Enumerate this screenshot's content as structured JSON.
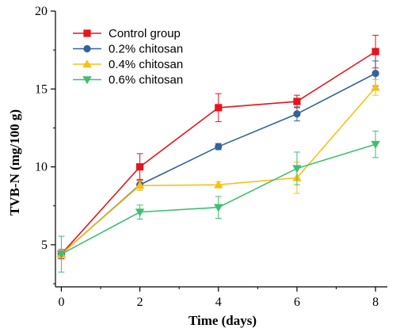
{
  "chart_data": {
    "type": "line",
    "title": "",
    "xlabel": "Time (days)",
    "ylabel": "TVB-N (mg/100 g)",
    "x": [
      0,
      2,
      4,
      6,
      8
    ],
    "xlim": [
      -0.15,
      8.3
    ],
    "ylim": [
      2.3,
      20
    ],
    "xticks": [
      0,
      2,
      4,
      6,
      8
    ],
    "yticks": [
      5,
      10,
      15,
      20
    ],
    "grid": false,
    "legend_position": "top-left",
    "series": [
      {
        "name": "Control group",
        "color": "#e8141c",
        "marker": "square",
        "values": [
          4.4,
          10.0,
          13.8,
          14.2,
          17.4
        ],
        "errors": [
          0.3,
          0.85,
          0.9,
          0.4,
          1.05
        ]
      },
      {
        "name": "0.2% chitosan",
        "color": "#33639c",
        "marker": "circle",
        "values": [
          4.4,
          8.85,
          11.3,
          13.4,
          16.0
        ],
        "errors": [
          0.2,
          0.35,
          0.2,
          0.45,
          0.8
        ]
      },
      {
        "name": "0.4% chitosan",
        "color": "#fbbf14",
        "marker": "triangle-up",
        "values": [
          4.4,
          8.8,
          8.85,
          9.3,
          15.1
        ],
        "errors": [
          0.2,
          0.3,
          0.2,
          1.0,
          0.5
        ]
      },
      {
        "name": "0.6% chitosan",
        "color": "#3dc06e",
        "marker": "triangle-down",
        "values": [
          4.4,
          7.1,
          7.4,
          9.9,
          11.45
        ],
        "errors": [
          1.15,
          0.45,
          0.7,
          1.05,
          0.85
        ]
      }
    ]
  }
}
